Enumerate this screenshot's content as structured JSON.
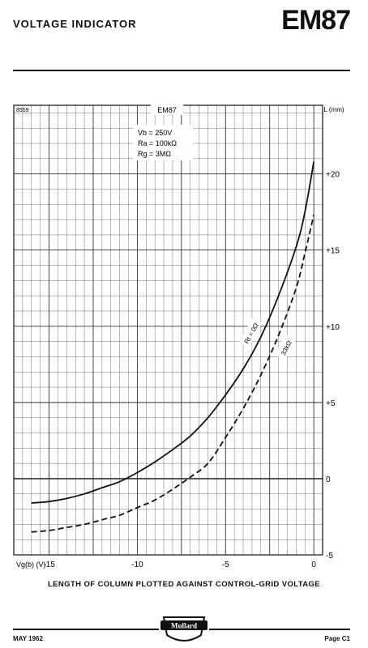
{
  "header": {
    "title": "VOLTAGE INDICATOR",
    "type": "EM87"
  },
  "caption": "LENGTH OF COLUMN PLOTTED AGAINST CONTROL-GRID VOLTAGE",
  "footer": {
    "date": "MAY 1962",
    "brand": "Mullard",
    "page": "Page C1"
  },
  "chart_data": {
    "type": "line",
    "ref": "8559",
    "valve": "EM87",
    "conditions": [
      "Vb = 250V",
      "Ra = 100kΩ",
      "Rg = 3MΩ"
    ],
    "xlabel": "Vg(b) (V)",
    "ylabel": "L (mm)",
    "xlim": [
      -17,
      0.5
    ],
    "ylim": [
      -5,
      24.5
    ],
    "x_ticks": [
      "-15",
      "-10",
      "-5",
      "0"
    ],
    "x_tick_values": [
      -15,
      -10,
      -5,
      0
    ],
    "y_ticks": [
      "-5",
      "0",
      "+5",
      "+10",
      "+15",
      "+20"
    ],
    "y_tick_values": [
      -5,
      0,
      5,
      10,
      15,
      20
    ],
    "grid": true,
    "series": [
      {
        "name": "Rt = 0Ω",
        "line": "solid",
        "x": [
          -16,
          -15,
          -14,
          -13,
          -12,
          -11,
          -10,
          -9,
          -8,
          -7,
          -6,
          -5,
          -4,
          -3,
          -2,
          -1,
          -0.5,
          0
        ],
        "y": [
          -1.6,
          -1.5,
          -1.3,
          -1.0,
          -0.6,
          -0.2,
          0.4,
          1.1,
          1.9,
          2.8,
          4.0,
          5.5,
          7.2,
          9.3,
          12.0,
          15.2,
          17.5,
          20.8
        ]
      },
      {
        "name": "33kΩ",
        "line": "dashed",
        "x": [
          -16,
          -15,
          -14,
          -13,
          -12,
          -11,
          -10,
          -9,
          -8,
          -7,
          -6,
          -5,
          -4,
          -3,
          -2,
          -1,
          -0.5,
          0
        ],
        "y": [
          -3.5,
          -3.4,
          -3.2,
          -3.0,
          -2.7,
          -2.4,
          -1.9,
          -1.4,
          -0.7,
          0.1,
          1.0,
          2.7,
          4.6,
          6.8,
          9.4,
          12.5,
          14.8,
          17.3
        ]
      }
    ]
  }
}
